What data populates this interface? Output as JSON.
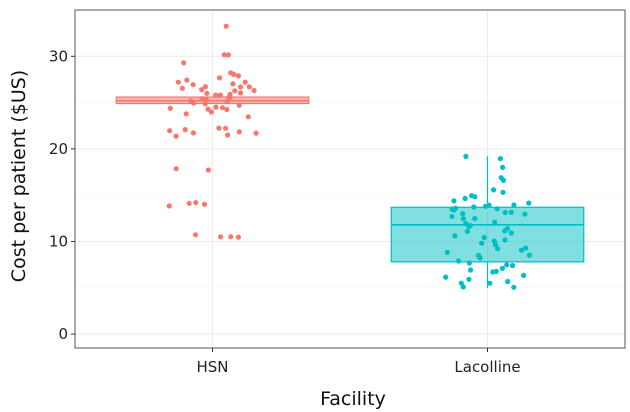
{
  "chart_data": {
    "type": "box",
    "xlabel": "Facility",
    "ylabel": "Cost per patient ($US)",
    "categories": [
      "HSN",
      "Lacolline"
    ],
    "ylim": [
      -1.5,
      35
    ],
    "yticks": [
      0,
      10,
      20,
      30
    ],
    "grid": true,
    "legend": "none",
    "boxes": [
      {
        "name": "HSN",
        "color": "#F8766D",
        "min": 24.9,
        "q1": 24.9,
        "median": 25.2,
        "q3": 25.6,
        "max": 25.6,
        "points": [
          33.2,
          30.3,
          30.2,
          29.4,
          28.3,
          28.0,
          27.8,
          27.6,
          27.5,
          27.3,
          27.2,
          27.0,
          26.9,
          26.8,
          26.7,
          26.6,
          26.5,
          26.4,
          26.3,
          26.2,
          26.1,
          26.0,
          25.9,
          25.8,
          25.7,
          25.6,
          25.5,
          25.4,
          25.3,
          25.2,
          25.1,
          25.0,
          24.9,
          24.8,
          24.7,
          24.6,
          24.5,
          24.4,
          24.3,
          24.2,
          24.1,
          23.8,
          23.5,
          22.0,
          22.2,
          21.9,
          21.8,
          21.7,
          22.1,
          21.6,
          22.3,
          21.5,
          17.8,
          17.8,
          14.3,
          14.2,
          14.0,
          13.8,
          10.6,
          10.6,
          10.6,
          10.6
        ]
      },
      {
        "name": "Lacolline",
        "color": "#00BFC4",
        "min": 5.0,
        "q1": 7.8,
        "median": 11.8,
        "q3": 13.7,
        "max": 19.2,
        "points": [
          19.2,
          19.0,
          18.0,
          17.0,
          16.5,
          15.5,
          15.3,
          15.0,
          14.8,
          14.6,
          14.4,
          14.2,
          14.0,
          13.9,
          13.8,
          13.7,
          13.6,
          13.5,
          13.4,
          13.3,
          13.2,
          13.1,
          13.0,
          12.9,
          12.8,
          12.6,
          12.4,
          12.2,
          12.0,
          11.8,
          11.6,
          11.4,
          11.2,
          11.0,
          10.8,
          10.6,
          10.4,
          10.2,
          10.0,
          9.8,
          9.6,
          9.4,
          9.2,
          9.0,
          8.8,
          8.6,
          8.4,
          8.2,
          8.0,
          7.8,
          7.6,
          7.4,
          7.2,
          7.0,
          6.8,
          6.6,
          6.4,
          6.2,
          6.0,
          5.8,
          5.6,
          5.4,
          5.2,
          5.0
        ]
      }
    ]
  }
}
